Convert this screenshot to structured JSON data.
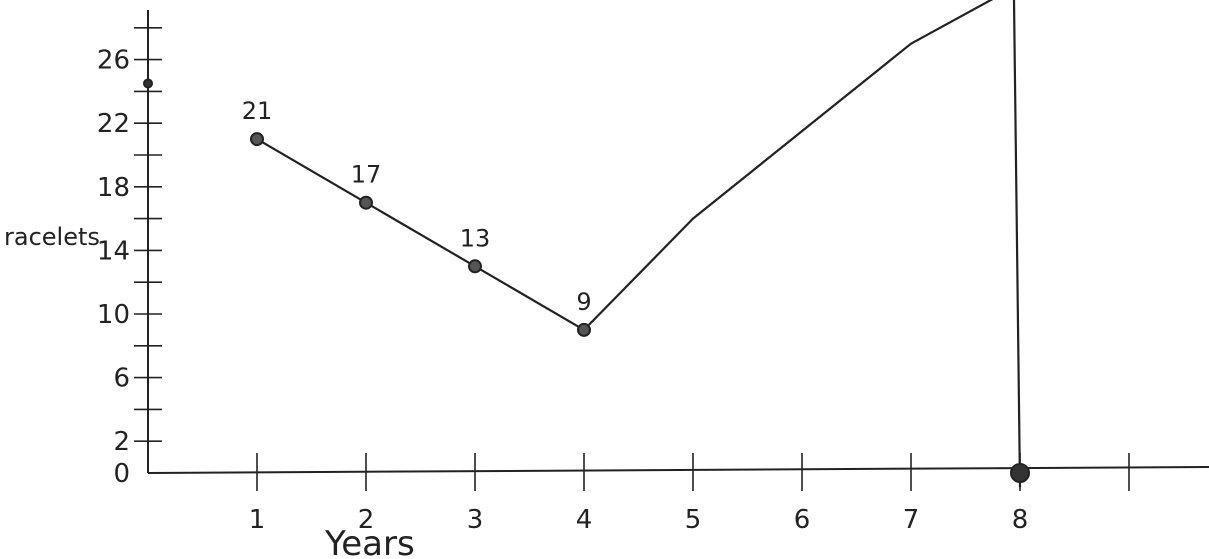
{
  "chart_data": {
    "type": "line",
    "title": "",
    "xlabel": "Years",
    "ylabel": "racelets",
    "x_ticks": [
      "1",
      "2",
      "3",
      "4",
      "5",
      "6",
      "7",
      "8"
    ],
    "y_ticks": [
      "0",
      "2",
      "6",
      "10",
      "14",
      "18",
      "22",
      "26"
    ],
    "xlim": [
      0,
      9.2
    ],
    "ylim": [
      0,
      30
    ],
    "grid": false,
    "series": [
      {
        "x": [
          1,
          2,
          3,
          4
        ],
        "y": [
          21,
          17,
          13,
          9
        ],
        "labels": [
          "21",
          "17",
          "13",
          "9"
        ]
      },
      {
        "x": [
          4,
          4.5,
          5,
          6,
          7,
          7.8
        ],
        "y": [
          9,
          12.5,
          16,
          21.5,
          27,
          30
        ]
      }
    ],
    "extra_points": [
      {
        "x": 0,
        "y": 24.5
      },
      {
        "x": 8,
        "y": 0
      }
    ],
    "vertical_line_x": 8,
    "colors": {
      "ink": "#222222"
    }
  }
}
